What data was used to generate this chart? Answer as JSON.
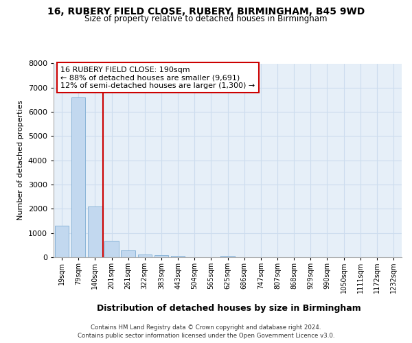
{
  "title1": "16, RUBERY FIELD CLOSE, RUBERY, BIRMINGHAM, B45 9WD",
  "title2": "Size of property relative to detached houses in Birmingham",
  "xlabel": "Distribution of detached houses by size in Birmingham",
  "ylabel": "Number of detached properties",
  "footnote1": "Contains HM Land Registry data © Crown copyright and database right 2024.",
  "footnote2": "Contains public sector information licensed under the Open Government Licence v3.0.",
  "annotation_line1": "16 RUBERY FIELD CLOSE: 190sqm",
  "annotation_line2": "← 88% of detached houses are smaller (9,691)",
  "annotation_line3": "12% of semi-detached houses are larger (1,300) →",
  "bar_color": "#c2d8ef",
  "bar_edge_color": "#8ab4d8",
  "grid_color": "#ccdcee",
  "background_color": "#e6eff8",
  "red_line_color": "#cc0000",
  "categories": [
    "19sqm",
    "79sqm",
    "140sqm",
    "201sqm",
    "261sqm",
    "322sqm",
    "383sqm",
    "443sqm",
    "504sqm",
    "565sqm",
    "625sqm",
    "686sqm",
    "747sqm",
    "807sqm",
    "868sqm",
    "929sqm",
    "990sqm",
    "1050sqm",
    "1111sqm",
    "1172sqm",
    "1232sqm"
  ],
  "values": [
    1300,
    6600,
    2090,
    680,
    295,
    120,
    75,
    55,
    0,
    0,
    70,
    0,
    0,
    0,
    0,
    0,
    0,
    0,
    0,
    0,
    0
  ],
  "red_line_x": 2.5,
  "ylim": [
    0,
    8000
  ],
  "yticks": [
    0,
    1000,
    2000,
    3000,
    4000,
    5000,
    6000,
    7000,
    8000
  ]
}
